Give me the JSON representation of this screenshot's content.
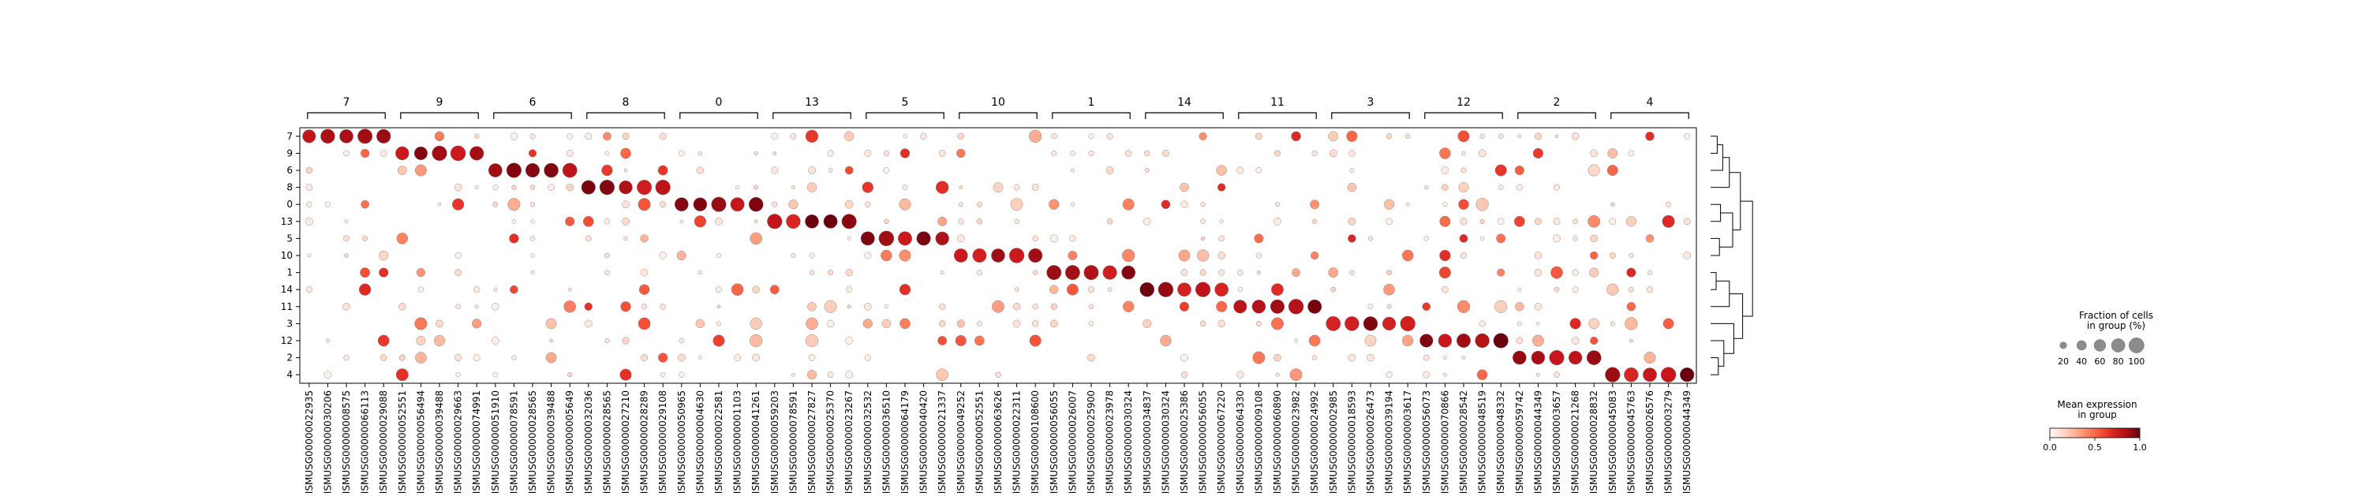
{
  "chart_data": {
    "type": "dotplot",
    "title": "",
    "groups": [
      {
        "label": "7",
        "genes": [
          "ENSMUSG00000022935",
          "ENSMUSG00000030206",
          "ENSMUSG00000008575",
          "ENSMUSG00000066113",
          "ENSMUSG00000029088"
        ]
      },
      {
        "label": "9",
        "genes": [
          "ENSMUSG00000052551",
          "ENSMUSG00000056494",
          "ENSMUSG00000039488",
          "ENSMUSG00000029663",
          "ENSMUSG00000074991"
        ]
      },
      {
        "label": "6",
        "genes": [
          "ENSMUSG00000051910",
          "ENSMUSG00000078591",
          "ENSMUSG00000028565",
          "ENSMUSG00000039488",
          "ENSMUSG00000005649"
        ]
      },
      {
        "label": "8",
        "genes": [
          "ENSMUSG00000032036",
          "ENSMUSG00000028565",
          "ENSMUSG00000027210",
          "ENSMUSG00000028289",
          "ENSMUSG00000029108"
        ]
      },
      {
        "label": "0",
        "genes": [
          "ENSMUSG00000050965",
          "ENSMUSG00000004630",
          "ENSMUSG00000022581",
          "ENSMUSG00000001103",
          "ENSMUSG00000041261"
        ]
      },
      {
        "label": "13",
        "genes": [
          "ENSMUSG00000059203",
          "ENSMUSG00000078591",
          "ENSMUSG00000027827",
          "ENSMUSG00000025370",
          "ENSMUSG00000023267"
        ]
      },
      {
        "label": "5",
        "genes": [
          "ENSMUSG00000032532",
          "ENSMUSG00000036510",
          "ENSMUSG00000064179",
          "ENSMUSG00000040420",
          "ENSMUSG00000021337"
        ]
      },
      {
        "label": "10",
        "genes": [
          "ENSMUSG00000049252",
          "ENSMUSG00000052551",
          "ENSMUSG00000063626",
          "ENSMUSG00000022311",
          "ENSMUSG00000108600"
        ]
      },
      {
        "label": "1",
        "genes": [
          "ENSMUSG00000056055",
          "ENSMUSG00000026007",
          "ENSMUSG00000025900",
          "ENSMUSG00000023978",
          "ENSMUSG00000030324"
        ]
      },
      {
        "label": "14",
        "genes": [
          "ENSMUSG00000034837",
          "ENSMUSG00000030324",
          "ENSMUSG00000025386",
          "ENSMUSG00000056055",
          "ENSMUSG00000067220"
        ]
      },
      {
        "label": "11",
        "genes": [
          "ENSMUSG00000064330",
          "ENSMUSG00000009108",
          "ENSMUSG00000060890",
          "ENSMUSG00000023982",
          "ENSMUSG00000024992"
        ]
      },
      {
        "label": "3",
        "genes": [
          "ENSMUSG00000002985",
          "ENSMUSG00000018593",
          "ENSMUSG00000026473",
          "ENSMUSG00000039194",
          "ENSMUSG00000003617"
        ]
      },
      {
        "label": "12",
        "genes": [
          "ENSMUSG00000056073",
          "ENSMUSG00000070866",
          "ENSMUSG00000028542",
          "ENSMUSG00000048519",
          "ENSMUSG00000048332"
        ]
      },
      {
        "label": "2",
        "genes": [
          "ENSMUSG00000059742",
          "ENSMUSG00000044349",
          "ENSMUSG00000003657",
          "ENSMUSG00000021268",
          "ENSMUSG00000028832"
        ]
      },
      {
        "label": "4",
        "genes": [
          "ENSMUSG00000045083",
          "ENSMUSG00000045763",
          "ENSMUSG00000026576",
          "ENSMUSG00000003279",
          "ENSMUSG00000044349"
        ]
      }
    ],
    "rows": [
      "7",
      "9",
      "6",
      "8",
      "0",
      "13",
      "5",
      "10",
      "1",
      "14",
      "11",
      "3",
      "12",
      "2",
      "4"
    ],
    "size_legend": {
      "title_lines": [
        "Fraction of cells",
        "in group (%)"
      ],
      "values": [
        20,
        40,
        60,
        80,
        100
      ]
    },
    "color_legend": {
      "title_lines": [
        "Mean expression",
        "in group"
      ],
      "ticks": [
        "0.0",
        "0.5",
        "1.0"
      ],
      "colormap": "Reds",
      "range": [
        0,
        1
      ]
    },
    "colors": {
      "low": "#fff5f0",
      "high": "#67000d"
    },
    "dendrogram": {
      "leaf_order": [
        "7",
        "9",
        "6",
        "8",
        "0",
        "13",
        "5",
        "10",
        "1",
        "14",
        "11",
        "3",
        "12",
        "2",
        "4"
      ],
      "merges": [
        [
          0,
          1,
          0.3
        ],
        [
          15,
          2,
          0.55
        ],
        [
          16,
          3,
          0.85
        ],
        [
          4,
          5,
          0.45
        ],
        [
          6,
          7,
          0.4
        ],
        [
          18,
          19,
          1.0
        ],
        [
          17,
          20,
          1.35
        ],
        [
          8,
          9,
          0.25
        ],
        [
          22,
          10,
          0.85
        ],
        [
          13,
          14,
          0.35
        ],
        [
          12,
          24,
          0.6
        ],
        [
          11,
          25,
          1.05
        ],
        [
          23,
          26,
          1.45
        ],
        [
          21,
          27,
          1.9
        ]
      ]
    }
  }
}
